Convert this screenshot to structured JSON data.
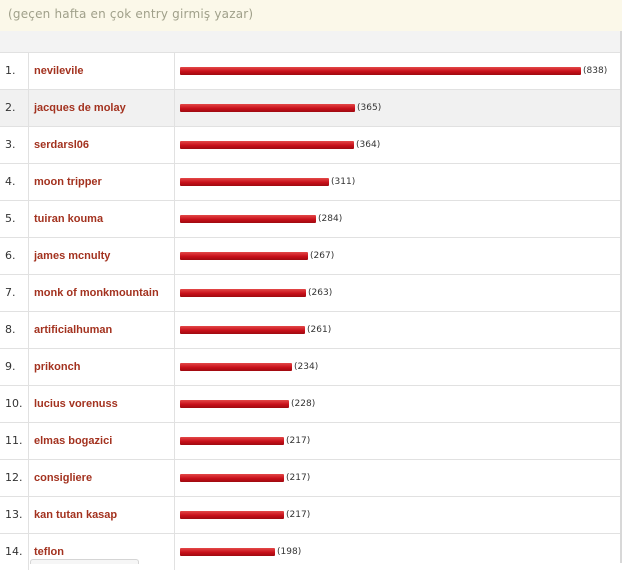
{
  "caption": "(geçen hafta en çok entry girmiş yazar)",
  "rows": [
    {
      "rank": "1.",
      "name": "nevilevile",
      "count": 838,
      "count_label": "(838)"
    },
    {
      "rank": "2.",
      "name": "jacques de molay",
      "count": 365,
      "count_label": "(365)"
    },
    {
      "rank": "3.",
      "name": "serdarsl06",
      "count": 364,
      "count_label": "(364)"
    },
    {
      "rank": "4.",
      "name": "moon tripper",
      "count": 311,
      "count_label": "(311)"
    },
    {
      "rank": "5.",
      "name": "tuiran kouma",
      "count": 284,
      "count_label": "(284)"
    },
    {
      "rank": "6.",
      "name": "james mcnulty",
      "count": 267,
      "count_label": "(267)"
    },
    {
      "rank": "7.",
      "name": "monk of monkmountain",
      "count": 263,
      "count_label": "(263)"
    },
    {
      "rank": "8.",
      "name": "artificialhuman",
      "count": 261,
      "count_label": "(261)"
    },
    {
      "rank": "9.",
      "name": "prikonch",
      "count": 234,
      "count_label": "(234)"
    },
    {
      "rank": "10.",
      "name": "lucius vorenuss",
      "count": 228,
      "count_label": "(228)"
    },
    {
      "rank": "11.",
      "name": "elmas bogazici",
      "count": 217,
      "count_label": "(217)"
    },
    {
      "rank": "12.",
      "name": "consigliere",
      "count": 217,
      "count_label": "(217)"
    },
    {
      "rank": "13.",
      "name": "kan tutan kasap",
      "count": 217,
      "count_label": "(217)"
    },
    {
      "rank": "14.",
      "name": "teflon",
      "count": 198,
      "count_label": "(198)"
    }
  ],
  "max_count": 838,
  "colors": {
    "author_link": "#a3321f",
    "bar": "#c8101a",
    "caption": "#a0a08a",
    "caption_bg": "#fbf8e9"
  },
  "highlighted_row": 1
}
